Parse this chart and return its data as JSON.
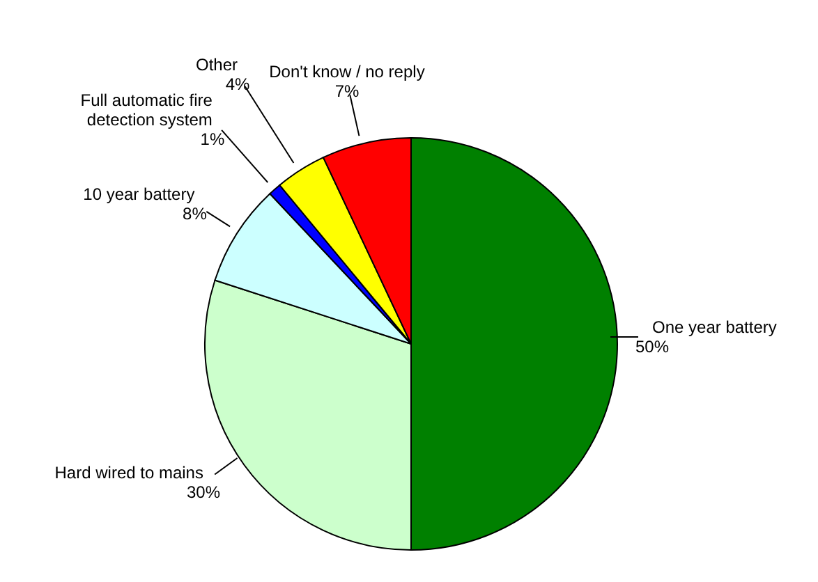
{
  "chart_data": {
    "type": "pie",
    "categories": [
      "One year battery",
      "Hard wired to mains",
      "10 year battery",
      "Full automatic fire detection system",
      "Other",
      "Don't know / no reply"
    ],
    "values": [
      50,
      30,
      8,
      1,
      4,
      7
    ],
    "value_labels": [
      "50%",
      "30%",
      "8%",
      "1%",
      "4%",
      "7%"
    ],
    "colors": [
      "#008000",
      "#ccffcc",
      "#ccffff",
      "#0000ff",
      "#ffff00",
      "#ff0000"
    ],
    "legend": false
  }
}
